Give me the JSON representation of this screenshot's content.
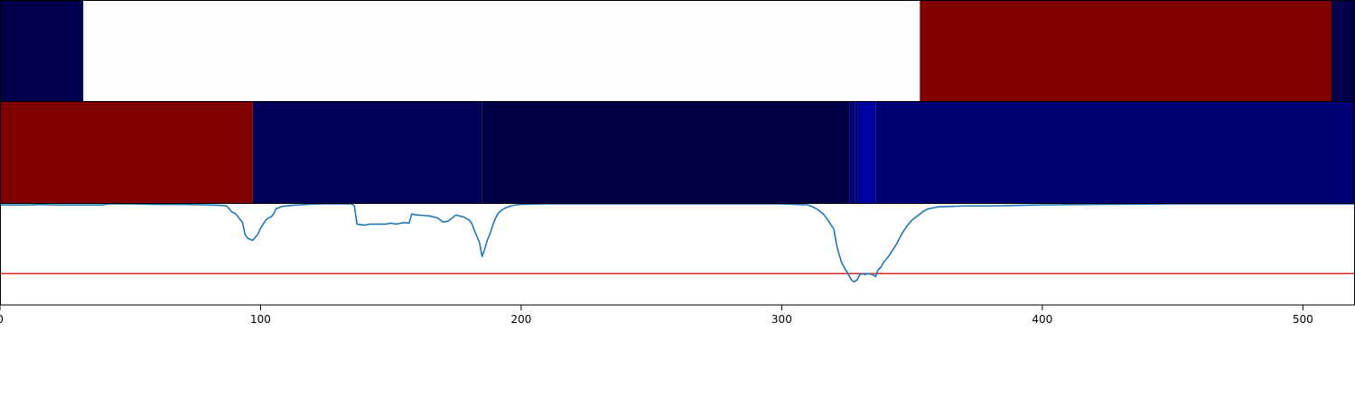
{
  "chart_data": {
    "type": "line",
    "title": "",
    "xlabel": "",
    "ylabel": "",
    "xlim": [
      0,
      520
    ],
    "x_ticks": [
      {
        "value": 0,
        "label": "0"
      },
      {
        "value": 100,
        "label": "100"
      },
      {
        "value": 200,
        "label": "200"
      },
      {
        "value": 300,
        "label": "300"
      },
      {
        "value": 400,
        "label": "400"
      },
      {
        "value": 500,
        "label": "500"
      }
    ],
    "heatmap_rows": [
      {
        "segments": [
          {
            "start": 0,
            "end": 32,
            "color": "#00004c"
          },
          {
            "start": 32,
            "end": 353,
            "color": "#fffcfc"
          },
          {
            "start": 353,
            "end": 511,
            "color": "#800000"
          },
          {
            "start": 511,
            "end": 520,
            "color": "#00004c"
          }
        ]
      },
      {
        "segments": [
          {
            "start": 0,
            "end": 97,
            "color": "#800000"
          },
          {
            "start": 97,
            "end": 185,
            "color": "#000059"
          },
          {
            "start": 185,
            "end": 326,
            "color": "#000046"
          },
          {
            "start": 326,
            "end": 328,
            "color": "#00007a"
          },
          {
            "start": 328,
            "end": 329,
            "color": "#000060"
          },
          {
            "start": 329,
            "end": 336,
            "color": "#0000a0"
          },
          {
            "start": 336,
            "end": 520,
            "color": "#000074"
          }
        ]
      }
    ],
    "ylim": [
      0.0,
      1.0
    ],
    "threshold": {
      "value": 0.31,
      "color": "#d62728"
    },
    "series": [
      {
        "color": "#1f77b4",
        "x": [
          0,
          13,
          14,
          20,
          30,
          40,
          41,
          50,
          60,
          70,
          80,
          85,
          87,
          88,
          89,
          90,
          91,
          92,
          93,
          94,
          95,
          96,
          97,
          98,
          99,
          100,
          101,
          102,
          103,
          104,
          105,
          106,
          107,
          108,
          110,
          112,
          115,
          120,
          125,
          130,
          133,
          135,
          136,
          137,
          140,
          142,
          145,
          148,
          150,
          152,
          155,
          157,
          158,
          160,
          163,
          165,
          168,
          169,
          170,
          172,
          175,
          178,
          180,
          181,
          182,
          183,
          184,
          185,
          186,
          187,
          188,
          189,
          190,
          191,
          192,
          194,
          196,
          198,
          200,
          205,
          210,
          220,
          240,
          260,
          280,
          300,
          310,
          312,
          314,
          316,
          318,
          320,
          321,
          322,
          323,
          324,
          325,
          326,
          327,
          328,
          329,
          330,
          331,
          332,
          333,
          334,
          335,
          336,
          337,
          338,
          339,
          340,
          341,
          342,
          344,
          346,
          348,
          350,
          352,
          354,
          356,
          360,
          370,
          380,
          390,
          400,
          420,
          450,
          480,
          500,
          520
        ],
        "values": [
          0.99,
          0.99,
          0.995,
          0.99,
          0.99,
          0.99,
          1.0,
          1.0,
          0.995,
          0.995,
          0.99,
          0.985,
          0.98,
          0.95,
          0.92,
          0.91,
          0.885,
          0.85,
          0.82,
          0.7,
          0.66,
          0.65,
          0.64,
          0.67,
          0.7,
          0.76,
          0.8,
          0.84,
          0.86,
          0.87,
          0.9,
          0.955,
          0.96,
          0.975,
          0.98,
          0.985,
          0.99,
          0.998,
          1.0,
          1.0,
          1.0,
          1.0,
          0.98,
          0.8,
          0.79,
          0.8,
          0.8,
          0.8,
          0.81,
          0.8,
          0.815,
          0.81,
          0.9,
          0.89,
          0.885,
          0.88,
          0.86,
          0.84,
          0.82,
          0.83,
          0.89,
          0.87,
          0.84,
          0.81,
          0.74,
          0.68,
          0.62,
          0.48,
          0.55,
          0.64,
          0.7,
          0.78,
          0.85,
          0.9,
          0.93,
          0.96,
          0.98,
          0.99,
          0.995,
          0.998,
          1.0,
          1.0,
          1.0,
          1.0,
          1.0,
          1.0,
          0.99,
          0.97,
          0.94,
          0.9,
          0.83,
          0.75,
          0.6,
          0.5,
          0.42,
          0.37,
          0.33,
          0.28,
          0.24,
          0.23,
          0.25,
          0.3,
          0.31,
          0.3,
          0.31,
          0.305,
          0.3,
          0.28,
          0.35,
          0.37,
          0.42,
          0.45,
          0.48,
          0.52,
          0.6,
          0.7,
          0.78,
          0.84,
          0.88,
          0.92,
          0.95,
          0.97,
          0.98,
          0.98,
          0.985,
          0.99,
          0.995,
          1.0,
          1.0,
          1.0,
          1.0
        ]
      }
    ],
    "grid": false,
    "legend": "none"
  }
}
